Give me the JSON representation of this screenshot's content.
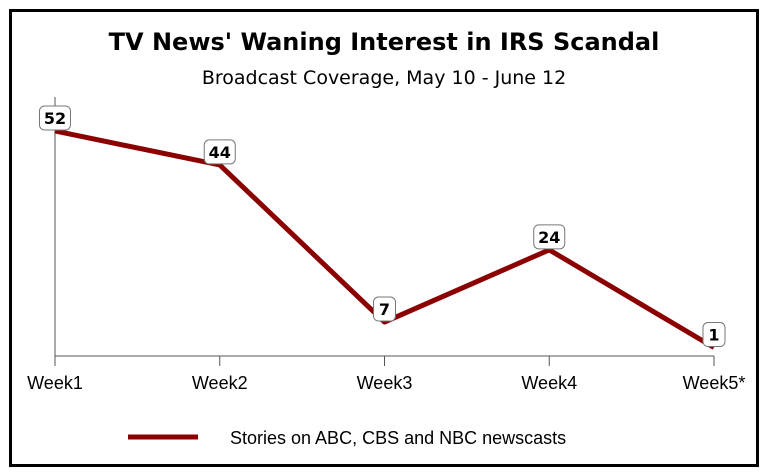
{
  "chart_data": {
    "type": "line",
    "title": "TV News' Waning Interest in IRS Scandal",
    "subtitle": "Broadcast Coverage, May 10 - June 12",
    "categories": [
      "Week1",
      "Week2",
      "Week3",
      "Week4",
      "Week5*"
    ],
    "series": [
      {
        "name": "Stories on ABC, CBS and NBC newscasts",
        "values": [
          52,
          44,
          7,
          24,
          1
        ],
        "color": "#8b0000"
      }
    ],
    "xlabel": "",
    "ylabel": "",
    "ylim": [
      -1,
      60
    ],
    "grid": false,
    "legend": "bottom"
  }
}
